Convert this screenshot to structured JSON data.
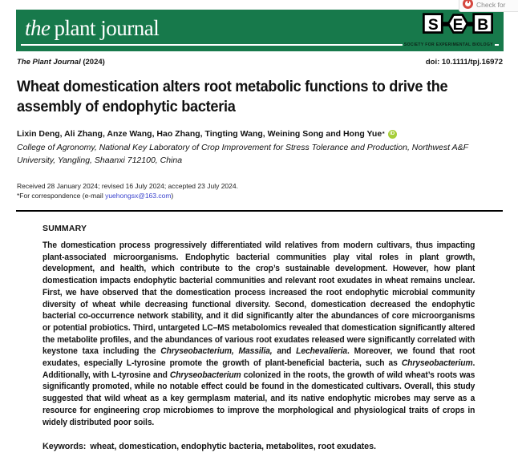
{
  "badge": {
    "label": "Check for"
  },
  "masthead": {
    "journal_the": "the",
    "journal_name": "plant journal",
    "seb": {
      "letter_s": "S",
      "letter_e": "E",
      "letter_b": "B",
      "tagline": "SOCIETY FOR EXPERIMENTAL BIOLOGY"
    }
  },
  "info_line": {
    "journal": "The Plant Journal",
    "year": " (2024)",
    "doi": "doi: 10.1111/tpj.16972"
  },
  "article": {
    "title": "Wheat domestication alters root metabolic functions to drive the assembly of endophytic bacteria",
    "authors": "Lixin Deng, Ali Zhang, Anze Wang, Hao Zhang, Tingting Wang, Weining Song and Hong Yue",
    "corresponding_mark": "*",
    "orcid_label": "iD",
    "affiliation": "College of Agronomy, National Key Laboratory of Crop Improvement for Stress Tolerance and Production, Northwest A&F University, Yangling, Shaanxi 712100, China",
    "history": "Received 28 January 2024; revised 16 July 2024; accepted 23 July 2024.",
    "correspondence_prefix": "*For correspondence (e-mail ",
    "correspondence_email": "yuehongsx@163.com",
    "correspondence_suffix": ")"
  },
  "summary": {
    "heading": "SUMMARY",
    "paragraph": [
      {
        "text": "The domestication process progressively differentiated wild relatives from modern cultivars, thus impacting plant-associated microorganisms. Endophytic bacterial communities play vital roles in plant growth, development, and health, which contribute to the crop’s sustainable development. However, how plant domestication impacts endophytic bacterial communities and relevant root exudates in wheat remains unclear. First, we have observed that the domestication process increased the root endophytic microbial community diversity of wheat while decreasing functional diversity. Second, domestication decreased the endophytic bacterial co-occurrence network stability, and it did significantly alter the abundances of core microorganisms or potential probiotics. Third, untargeted LC–MS metabolomics revealed that domestication significantly altered the metabolite profiles, and the abundances of various root exudates released were significantly correlated with keystone taxa including the ",
        "italic": false
      },
      {
        "text": "Chryseobacterium, Massilia,",
        "italic": true
      },
      {
        "text": " and ",
        "italic": false
      },
      {
        "text": "Lechevalieria",
        "italic": true
      },
      {
        "text": ". Moreover, we found that root exudates, especially L-tyrosine promote the growth of plant-beneficial bacteria, such as ",
        "italic": false
      },
      {
        "text": "Chryseobacterium",
        "italic": true
      },
      {
        "text": ". Additionally, with L-tyrosine and ",
        "italic": false
      },
      {
        "text": "Chryseobacterium",
        "italic": true
      },
      {
        "text": " colonized in the roots, the growth of wild wheat’s roots was significantly promoted, while no notable effect could be found in the domesticated cultivars. Overall, this study suggested that wild wheat as a key germplasm material, and its native endophytic microbes may serve as a resource for engineering crop microbiomes to improve the morphological and physiological traits of crops in widely distributed poor soils.",
        "italic": false
      }
    ],
    "keywords_label": "Keywords:",
    "keywords": "wheat, domestication, endophytic bacteria, metabolites, root exudates."
  },
  "colors": {
    "masthead_green": "#17794b",
    "link_blue": "#3a43cd",
    "orcid_green": "#a6ce39",
    "crossmark_red": "#d5473f"
  }
}
